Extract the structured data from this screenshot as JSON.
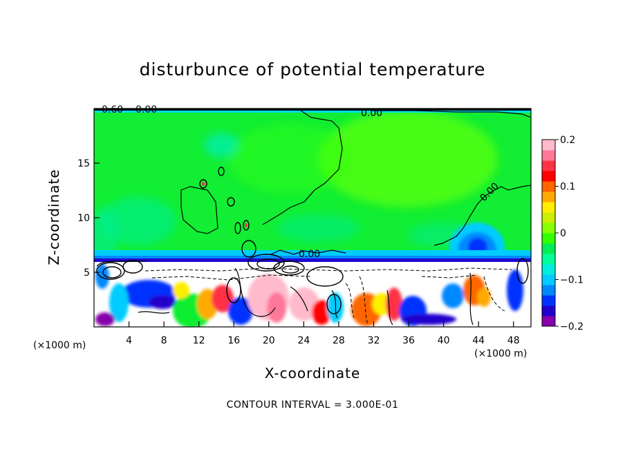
{
  "chart_data": {
    "type": "heatmap",
    "title": "disturbunce of potential temperature",
    "xlabel": "X-coordinate",
    "ylabel": "Z-coordinate",
    "x_unit": "(×1000 m)",
    "x_unit_right": "(×1000 m)",
    "xlim": [
      0,
      50
    ],
    "ylim": [
      0,
      20
    ],
    "x_ticks": [
      4,
      8,
      12,
      16,
      20,
      24,
      28,
      32,
      36,
      40,
      44,
      48
    ],
    "y_ticks": [
      5,
      10,
      15
    ],
    "colorbar": {
      "vmin": -0.2,
      "vmax": 0.2,
      "tick_values": [
        0.2,
        0.1,
        0,
        -0.1,
        -0.2
      ],
      "tick_labels": [
        "0.2",
        "0.1",
        "0",
        "−0.1",
        "−0.2"
      ],
      "colors": [
        "#8800aa",
        "#2200cc",
        "#0033ff",
        "#0088ff",
        "#00ccff",
        "#00eedd",
        "#00ff99",
        "#00ee55",
        "#33ff00",
        "#88ff00",
        "#ccee00",
        "#ffee00",
        "#ffaa00",
        "#ff6600",
        "#ff0000",
        "#ff3344",
        "#ff7799",
        "#ffbbcc"
      ]
    },
    "contour_labels": [
      "0.60",
      "0.00",
      "0.00",
      "0.00",
      "0.00"
    ],
    "contour_interval": "CONTOUR INTERVAL = 3.000E-01"
  }
}
